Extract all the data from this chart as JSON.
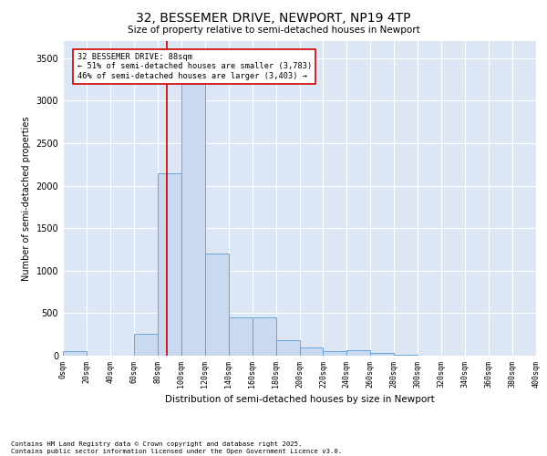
{
  "title1": "32, BESSEMER DRIVE, NEWPORT, NP19 4TP",
  "title2": "Size of property relative to semi-detached houses in Newport",
  "xlabel": "Distribution of semi-detached houses by size in Newport",
  "ylabel": "Number of semi-detached properties",
  "bin_edges": [
    0,
    20,
    40,
    60,
    80,
    100,
    120,
    140,
    160,
    180,
    200,
    220,
    240,
    260,
    280,
    300,
    320,
    340,
    360,
    380,
    400
  ],
  "bar_heights": [
    50,
    0,
    0,
    260,
    2150,
    3380,
    1200,
    450,
    450,
    185,
    100,
    55,
    65,
    30,
    8,
    5,
    3,
    2,
    1,
    0
  ],
  "bar_color": "#c9d9f0",
  "bar_edge_color": "#5b9bd5",
  "property_size": 88,
  "annotation_title": "32 BESSEMER DRIVE: 88sqm",
  "annotation_line1": "← 51% of semi-detached houses are smaller (3,783)",
  "annotation_line2": "46% of semi-detached houses are larger (3,403) →",
  "vline_color": "#cc0000",
  "annotation_box_color": "#ffffff",
  "annotation_box_edge": "#cc0000",
  "ylim": [
    0,
    3700
  ],
  "yticks": [
    0,
    500,
    1000,
    1500,
    2000,
    2500,
    3000,
    3500
  ],
  "plot_bg": "#dce6f5",
  "footer1": "Contains HM Land Registry data © Crown copyright and database right 2025.",
  "footer2": "Contains public sector information licensed under the Open Government Licence v3.0."
}
